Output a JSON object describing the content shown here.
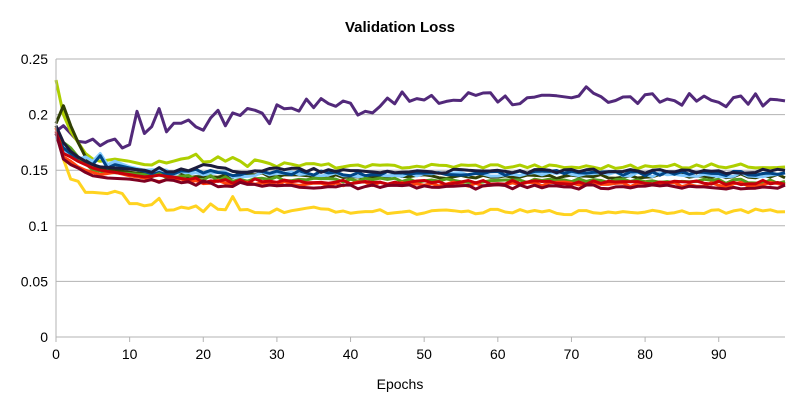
{
  "chart_data": {
    "type": "line",
    "title": "Validation Loss",
    "xlabel": "Epochs",
    "ylabel": "",
    "xlim": [
      0,
      99
    ],
    "ylim": [
      0,
      0.25
    ],
    "x_ticks": [
      0,
      10,
      20,
      30,
      40,
      50,
      60,
      70,
      80,
      90
    ],
    "x_tick_labels": [
      "0",
      "10",
      "20",
      "30",
      "40",
      "50",
      "60",
      "70",
      "80",
      "90"
    ],
    "y_ticks": [
      0,
      0.05,
      0.1,
      0.15,
      0.2,
      0.25
    ],
    "y_tick_labels": [
      "0",
      "0.05",
      "0.1",
      "0.15",
      "0.2",
      "0.25"
    ],
    "grid": "horizontal",
    "legend": "none",
    "series": [
      {
        "color": "#52297a",
        "baseline": 0.209,
        "anchors": [
          [
            0,
            0.185
          ],
          [
            1,
            0.19
          ],
          [
            2,
            0.183
          ],
          [
            3,
            0.176
          ],
          [
            4,
            0.175
          ],
          [
            5,
            0.178
          ],
          [
            6,
            0.172
          ],
          [
            7,
            0.176
          ],
          [
            8,
            0.178
          ],
          [
            9,
            0.17
          ],
          [
            10,
            0.173
          ],
          [
            11,
            0.203
          ],
          [
            12,
            0.183
          ],
          [
            13,
            0.186
          ],
          [
            14,
            0.202
          ],
          [
            15,
            0.188
          ],
          [
            16,
            0.193
          ],
          [
            17,
            0.189
          ],
          [
            18,
            0.198
          ],
          [
            19,
            0.19
          ],
          [
            20,
            0.186
          ],
          [
            21,
            0.196
          ],
          [
            22,
            0.206
          ],
          [
            23,
            0.193
          ],
          [
            24,
            0.198
          ],
          [
            25,
            0.2
          ],
          [
            26,
            0.208
          ],
          [
            27,
            0.204
          ],
          [
            28,
            0.203
          ],
          [
            29,
            0.195
          ],
          [
            30,
            0.207
          ],
          [
            35,
            0.21
          ],
          [
            40,
            0.212
          ],
          [
            41,
            0.197
          ],
          [
            45,
            0.216
          ],
          [
            50,
            0.212
          ],
          [
            55,
            0.214
          ],
          [
            59,
            0.223
          ],
          [
            60,
            0.215
          ],
          [
            65,
            0.212
          ],
          [
            70,
            0.214
          ],
          [
            73,
            0.222
          ],
          [
            75,
            0.215
          ],
          [
            80,
            0.213
          ],
          [
            85,
            0.214
          ],
          [
            90,
            0.212
          ],
          [
            95,
            0.213
          ],
          [
            99,
            0.211
          ]
        ]
      },
      {
        "color": "#ffd320",
        "baseline": 0.113,
        "anchors": [
          [
            0,
            0.19
          ],
          [
            1,
            0.16
          ],
          [
            2,
            0.142
          ],
          [
            3,
            0.14
          ],
          [
            4,
            0.13
          ],
          [
            5,
            0.13
          ],
          [
            7,
            0.129
          ],
          [
            8,
            0.131
          ],
          [
            9,
            0.129
          ],
          [
            10,
            0.12
          ],
          [
            11,
            0.12
          ],
          [
            12,
            0.118
          ],
          [
            13,
            0.121
          ],
          [
            14,
            0.125
          ],
          [
            15,
            0.115
          ],
          [
            16,
            0.114
          ],
          [
            18,
            0.116
          ],
          [
            19,
            0.117
          ],
          [
            20,
            0.113
          ],
          [
            21,
            0.118
          ],
          [
            22,
            0.113
          ],
          [
            23,
            0.114
          ],
          [
            24,
            0.124
          ],
          [
            25,
            0.114
          ],
          [
            30,
            0.113
          ],
          [
            35,
            0.115
          ],
          [
            40,
            0.113
          ],
          [
            50,
            0.112
          ],
          [
            60,
            0.113
          ],
          [
            70,
            0.112
          ],
          [
            80,
            0.113
          ],
          [
            90,
            0.113
          ],
          [
            99,
            0.113
          ]
        ]
      },
      {
        "color": "#aecf00",
        "baseline": 0.153,
        "anchors": [
          [
            0,
            0.231
          ],
          [
            1,
            0.2
          ],
          [
            2,
            0.185
          ],
          [
            3,
            0.175
          ],
          [
            4,
            0.165
          ],
          [
            5,
            0.16
          ],
          [
            6,
            0.158
          ],
          [
            8,
            0.16
          ],
          [
            10,
            0.158
          ],
          [
            12,
            0.155
          ],
          [
            14,
            0.156
          ],
          [
            16,
            0.157
          ],
          [
            18,
            0.16
          ],
          [
            19,
            0.162
          ],
          [
            20,
            0.158
          ],
          [
            22,
            0.162
          ],
          [
            24,
            0.159
          ],
          [
            26,
            0.155
          ],
          [
            28,
            0.16
          ],
          [
            30,
            0.155
          ],
          [
            35,
            0.155
          ],
          [
            40,
            0.153
          ],
          [
            50,
            0.154
          ],
          [
            60,
            0.154
          ],
          [
            70,
            0.153
          ],
          [
            80,
            0.153
          ],
          [
            90,
            0.154
          ],
          [
            99,
            0.154
          ]
        ]
      },
      {
        "color": "#314004",
        "baseline": 0.144,
        "anchors": [
          [
            0,
            0.192
          ],
          [
            1,
            0.208
          ],
          [
            2,
            0.19
          ],
          [
            3,
            0.175
          ],
          [
            4,
            0.162
          ],
          [
            5,
            0.155
          ],
          [
            6,
            0.152
          ],
          [
            8,
            0.15
          ],
          [
            10,
            0.148
          ],
          [
            12,
            0.147
          ],
          [
            14,
            0.146
          ],
          [
            16,
            0.146
          ],
          [
            20,
            0.145
          ],
          [
            25,
            0.146
          ],
          [
            30,
            0.145
          ],
          [
            40,
            0.144
          ],
          [
            50,
            0.144
          ],
          [
            60,
            0.144
          ],
          [
            70,
            0.144
          ],
          [
            80,
            0.145
          ],
          [
            90,
            0.145
          ],
          [
            99,
            0.145
          ]
        ]
      },
      {
        "color": "#83caff",
        "baseline": 0.146,
        "anchors": [
          [
            0,
            0.18
          ],
          [
            1,
            0.168
          ],
          [
            2,
            0.165
          ],
          [
            3,
            0.16
          ],
          [
            4,
            0.162
          ],
          [
            5,
            0.158
          ],
          [
            6,
            0.165
          ],
          [
            7,
            0.155
          ],
          [
            8,
            0.158
          ],
          [
            10,
            0.153
          ],
          [
            12,
            0.15
          ],
          [
            14,
            0.148
          ],
          [
            16,
            0.148
          ],
          [
            20,
            0.147
          ],
          [
            25,
            0.146
          ],
          [
            30,
            0.147
          ],
          [
            40,
            0.146
          ],
          [
            50,
            0.146
          ],
          [
            60,
            0.146
          ],
          [
            70,
            0.147
          ],
          [
            80,
            0.146
          ],
          [
            90,
            0.146
          ],
          [
            99,
            0.146
          ]
        ]
      },
      {
        "color": "#004586",
        "baseline": 0.147,
        "anchors": [
          [
            0,
            0.183
          ],
          [
            1,
            0.17
          ],
          [
            2,
            0.165
          ],
          [
            3,
            0.16
          ],
          [
            4,
            0.158
          ],
          [
            5,
            0.155
          ],
          [
            6,
            0.163
          ],
          [
            7,
            0.152
          ],
          [
            8,
            0.155
          ],
          [
            10,
            0.152
          ],
          [
            12,
            0.149
          ],
          [
            15,
            0.148
          ],
          [
            20,
            0.149
          ],
          [
            25,
            0.147
          ],
          [
            30,
            0.148
          ],
          [
            40,
            0.147
          ],
          [
            50,
            0.147
          ],
          [
            60,
            0.147
          ],
          [
            70,
            0.148
          ],
          [
            80,
            0.147
          ],
          [
            90,
            0.147
          ],
          [
            99,
            0.147
          ]
        ]
      },
      {
        "color": "#579d1c",
        "baseline": 0.141,
        "anchors": [
          [
            0,
            0.185
          ],
          [
            1,
            0.175
          ],
          [
            2,
            0.17
          ],
          [
            3,
            0.162
          ],
          [
            4,
            0.156
          ],
          [
            5,
            0.15
          ],
          [
            7,
            0.148
          ],
          [
            10,
            0.147
          ],
          [
            12,
            0.146
          ],
          [
            15,
            0.144
          ],
          [
            20,
            0.143
          ],
          [
            25,
            0.142
          ],
          [
            30,
            0.142
          ],
          [
            40,
            0.141
          ],
          [
            50,
            0.141
          ],
          [
            60,
            0.14
          ],
          [
            70,
            0.141
          ],
          [
            80,
            0.14
          ],
          [
            90,
            0.14
          ],
          [
            99,
            0.14
          ]
        ]
      },
      {
        "color": "#ff420e",
        "baseline": 0.138,
        "anchors": [
          [
            0,
            0.188
          ],
          [
            1,
            0.162
          ],
          [
            2,
            0.158
          ],
          [
            3,
            0.153
          ],
          [
            4,
            0.15
          ],
          [
            5,
            0.148
          ],
          [
            6,
            0.146
          ],
          [
            8,
            0.148
          ],
          [
            10,
            0.145
          ],
          [
            12,
            0.143
          ],
          [
            14,
            0.14
          ],
          [
            16,
            0.142
          ],
          [
            20,
            0.14
          ],
          [
            25,
            0.139
          ],
          [
            30,
            0.138
          ],
          [
            40,
            0.138
          ],
          [
            50,
            0.138
          ],
          [
            60,
            0.137
          ],
          [
            70,
            0.138
          ],
          [
            80,
            0.137
          ],
          [
            90,
            0.137
          ],
          [
            99,
            0.137
          ]
        ]
      },
      {
        "color": "#c5000b",
        "baseline": 0.139,
        "anchors": [
          [
            0,
            0.185
          ],
          [
            1,
            0.165
          ],
          [
            2,
            0.162
          ],
          [
            3,
            0.158
          ],
          [
            4,
            0.155
          ],
          [
            5,
            0.152
          ],
          [
            6,
            0.15
          ],
          [
            8,
            0.148
          ],
          [
            10,
            0.146
          ],
          [
            12,
            0.144
          ],
          [
            15,
            0.143
          ],
          [
            20,
            0.141
          ],
          [
            25,
            0.14
          ],
          [
            30,
            0.14
          ],
          [
            40,
            0.139
          ],
          [
            50,
            0.139
          ],
          [
            60,
            0.139
          ],
          [
            70,
            0.139
          ],
          [
            80,
            0.139
          ],
          [
            90,
            0.139
          ],
          [
            99,
            0.139
          ]
        ]
      },
      {
        "color": "#7e0021",
        "baseline": 0.135,
        "anchors": [
          [
            0,
            0.183
          ],
          [
            1,
            0.16
          ],
          [
            2,
            0.155
          ],
          [
            3,
            0.152
          ],
          [
            4,
            0.148
          ],
          [
            5,
            0.145
          ],
          [
            7,
            0.143
          ],
          [
            10,
            0.142
          ],
          [
            12,
            0.14
          ],
          [
            15,
            0.139
          ],
          [
            20,
            0.138
          ],
          [
            25,
            0.137
          ],
          [
            30,
            0.136
          ],
          [
            40,
            0.135
          ],
          [
            50,
            0.135
          ],
          [
            60,
            0.135
          ],
          [
            70,
            0.135
          ],
          [
            80,
            0.135
          ],
          [
            90,
            0.135
          ],
          [
            99,
            0.135
          ]
        ]
      },
      {
        "color": "#1c1c3c",
        "baseline": 0.149,
        "anchors": [
          [
            0,
            0.19
          ],
          [
            1,
            0.175
          ],
          [
            2,
            0.167
          ],
          [
            3,
            0.162
          ],
          [
            4,
            0.158
          ],
          [
            5,
            0.155
          ],
          [
            6,
            0.153
          ],
          [
            8,
            0.152
          ],
          [
            10,
            0.151
          ],
          [
            12,
            0.15
          ],
          [
            15,
            0.15
          ],
          [
            20,
            0.153
          ],
          [
            25,
            0.15
          ],
          [
            30,
            0.151
          ],
          [
            40,
            0.149
          ],
          [
            50,
            0.149
          ],
          [
            60,
            0.149
          ],
          [
            70,
            0.149
          ],
          [
            80,
            0.149
          ],
          [
            90,
            0.149
          ],
          [
            99,
            0.149
          ]
        ]
      }
    ]
  }
}
